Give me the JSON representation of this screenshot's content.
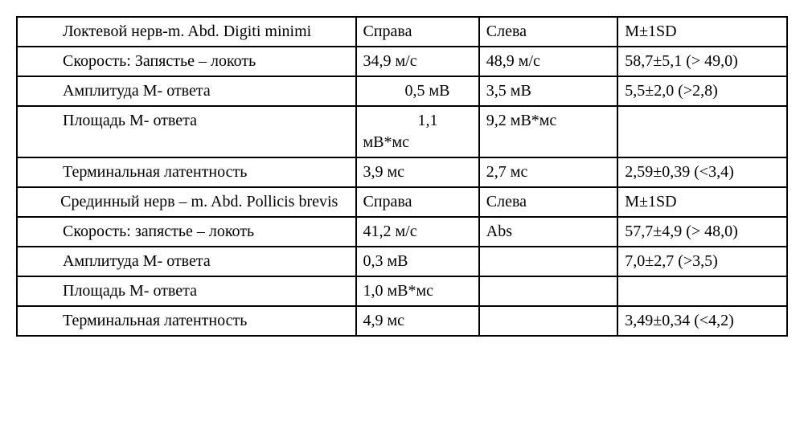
{
  "table": {
    "border_color": "#000000",
    "background_color": "#ffffff",
    "font_family": "Times New Roman",
    "cell_fontsize": 20,
    "rows": [
      {
        "param": "Локтевой нерв-m. Abd. Digiti minimi",
        "right": "Справа",
        "left": "Слева",
        "sd": "M±1SD"
      },
      {
        "param": "Скорость: Запястье – локоть",
        "right": "34,9 м/с",
        "left": "48,9 м/с",
        "sd": "58,7±5,1 (> 49,0)"
      },
      {
        "param": "Амплитуда М- ответа",
        "right": "0,5 мВ",
        "left": "3,5 мВ",
        "sd": "5,5±2,0 (>2,8)"
      },
      {
        "param": "Площадь М- ответа",
        "right": "1,1 мВ*мс",
        "left": "9,2 мВ*мс",
        "sd": ""
      },
      {
        "param": "Терминальная латентность",
        "right": "3,9 мс",
        "left": "2,7 мс",
        "sd": "2,59±0,39 (<3,4)"
      },
      {
        "param": "Срединный нерв – m. Abd. Pollicis brevis",
        "right": "Справа",
        "left": "Слева",
        "sd": "M±1SD"
      },
      {
        "param": "Скорость: запястье – локоть",
        "right": "41,2 м/с",
        "left": "Abs",
        "sd": "57,7±4,9 (> 48,0)"
      },
      {
        "param": "Амплитуда М- ответа",
        "right": "0,3 мВ",
        "left": "",
        "sd": "7,0±2,7 (>3,5)"
      },
      {
        "param": "Площадь М- ответа",
        "right": "1,0 мВ*мс",
        "left": "",
        "sd": ""
      },
      {
        "param": "Терминальная латентность",
        "right": "4,9 мс",
        "left": "",
        "sd": "3,49±0,34 (<4,2)"
      }
    ],
    "special_right": {
      "2": "0,5 мВ",
      "3_line1": "1,1",
      "3_line2": "мВ*мс"
    }
  }
}
